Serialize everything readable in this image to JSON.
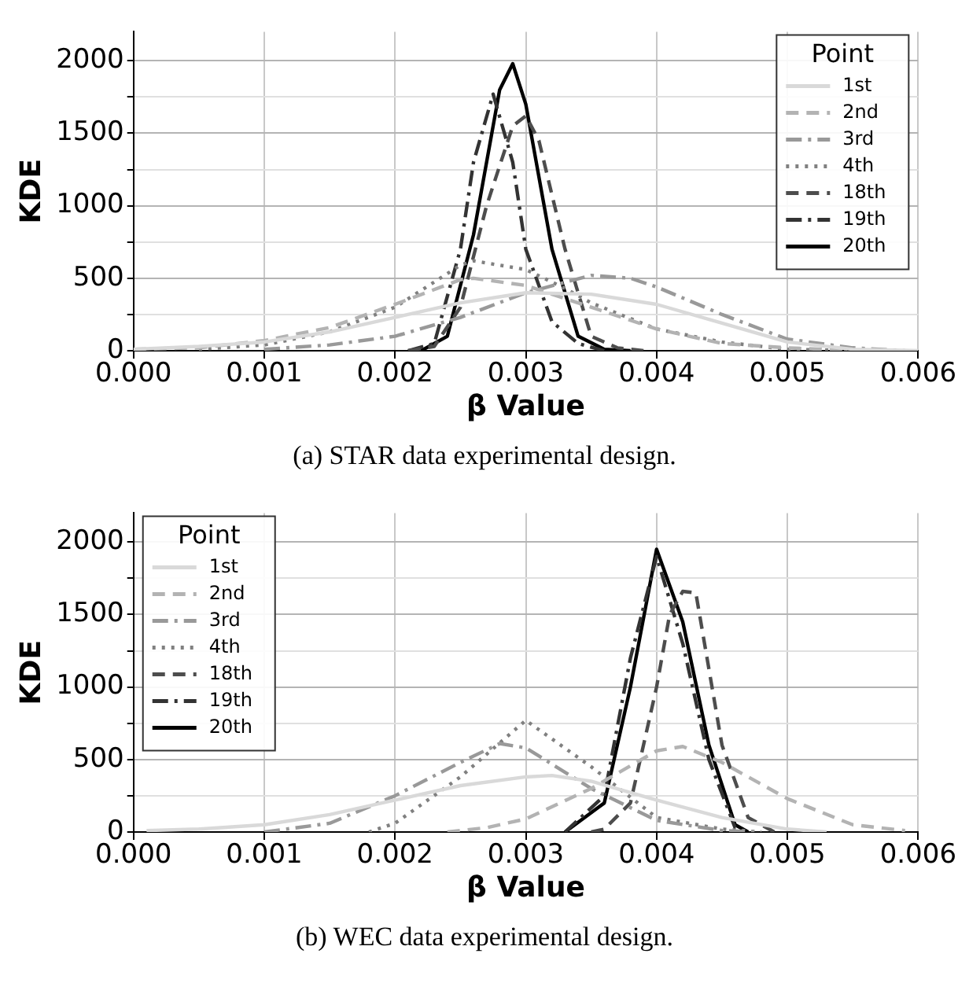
{
  "chart_data": [
    {
      "type": "line",
      "xlabel": "β Value",
      "ylabel": "KDE",
      "legend_title": "Point",
      "legend": "top right",
      "grid": true,
      "marker": "none",
      "annotations": [
        "(a) STAR data experimental design."
      ],
      "xlim": [
        0,
        0.006
      ],
      "ylim": [
        0,
        2200
      ],
      "xticks": [
        {
          "value": 0,
          "label": "0.000"
        },
        {
          "value": 0.001,
          "label": "0.001"
        },
        {
          "value": 0.002,
          "label": "0.002"
        },
        {
          "value": 0.003,
          "label": "0.003"
        },
        {
          "value": 0.004,
          "label": "0.004"
        },
        {
          "value": 0.005,
          "label": "0.005"
        },
        {
          "value": 0.006,
          "label": "0.006"
        }
      ],
      "yticks": [
        0,
        {
          "value": 250,
          "label": null
        },
        500,
        {
          "value": 750,
          "label": null
        },
        1000,
        {
          "value": 1250,
          "label": null
        },
        1500,
        {
          "value": 1750,
          "label": null
        },
        2000
      ],
      "series": [
        {
          "name": "1st",
          "color": "#d9d9d9",
          "line_style": "solid",
          "x": [
            0,
            0.0005,
            0.001,
            0.0015,
            0.002,
            0.0025,
            0.003,
            0.0035,
            0.004,
            0.0045,
            0.005,
            0.0055,
            0.006
          ],
          "values": [
            10,
            30,
            60,
            130,
            230,
            330,
            400,
            390,
            320,
            190,
            60,
            10,
            0
          ]
        },
        {
          "name": "2nd",
          "color": "#b3b3b3",
          "line_style": "dashed",
          "x": [
            0,
            0.0005,
            0.001,
            0.0015,
            0.002,
            0.0025,
            0.0026,
            0.003,
            0.0035,
            0.004,
            0.0045,
            0.005,
            0.0055
          ],
          "values": [
            10,
            20,
            70,
            160,
            320,
            490,
            500,
            450,
            300,
            150,
            50,
            20,
            0
          ]
        },
        {
          "name": "3rd",
          "color": "#999999",
          "line_style": "dashdot",
          "x": [
            0.001,
            0.0015,
            0.002,
            0.0025,
            0.003,
            0.0035,
            0.0038,
            0.004,
            0.0045,
            0.005,
            0.0055,
            0.0059
          ],
          "values": [
            10,
            40,
            100,
            230,
            400,
            520,
            500,
            440,
            250,
            80,
            20,
            0
          ]
        },
        {
          "name": "4th",
          "color": "#808080",
          "line_style": "dotted",
          "x": [
            0.0005,
            0.001,
            0.0015,
            0.002,
            0.0025,
            0.0026,
            0.003,
            0.0033,
            0.0035,
            0.004,
            0.0045,
            0.005,
            0.0055
          ],
          "values": [
            10,
            40,
            130,
            300,
            590,
            620,
            560,
            430,
            330,
            150,
            60,
            10,
            0
          ]
        },
        {
          "name": "18th",
          "color": "#4d4d4d",
          "line_style": "dashed",
          "x": [
            0.0021,
            0.0023,
            0.0025,
            0.0027,
            0.0029,
            0.003,
            0.0031,
            0.0033,
            0.0035,
            0.0037,
            0.0039
          ],
          "values": [
            0,
            30,
            300,
            1000,
            1550,
            1620,
            1450,
            700,
            100,
            20,
            0
          ]
        },
        {
          "name": "19th",
          "color": "#333333",
          "line_style": "dashdot",
          "x": [
            0.0021,
            0.0023,
            0.0025,
            0.0026,
            0.00275,
            0.0029,
            0.003,
            0.0032,
            0.0034,
            0.0036
          ],
          "values": [
            0,
            50,
            700,
            1300,
            1770,
            1300,
            700,
            200,
            50,
            0
          ]
        },
        {
          "name": "20th",
          "color": "#000000",
          "line_style": "solid",
          "x": [
            0.0022,
            0.0024,
            0.0026,
            0.0028,
            0.0029,
            0.003,
            0.0032,
            0.0034,
            0.0036,
            0.0038
          ],
          "values": [
            0,
            100,
            800,
            1800,
            1980,
            1700,
            700,
            100,
            10,
            0
          ]
        }
      ]
    },
    {
      "type": "line",
      "xlabel": "β Value",
      "ylabel": "KDE",
      "legend_title": "Point",
      "legend": "top left",
      "grid": true,
      "marker": "none",
      "annotations": [
        "(b) WEC data experimental design."
      ],
      "xlim": [
        0,
        0.006
      ],
      "ylim": [
        0,
        2200
      ],
      "xticks": [
        {
          "value": 0,
          "label": "0.000"
        },
        {
          "value": 0.001,
          "label": "0.001"
        },
        {
          "value": 0.002,
          "label": "0.002"
        },
        {
          "value": 0.003,
          "label": "0.003"
        },
        {
          "value": 0.004,
          "label": "0.004"
        },
        {
          "value": 0.005,
          "label": "0.005"
        },
        {
          "value": 0.006,
          "label": "0.006"
        }
      ],
      "yticks": [
        0,
        {
          "value": 250,
          "label": null
        },
        500,
        {
          "value": 750,
          "label": null
        },
        1000,
        {
          "value": 1250,
          "label": null
        },
        1500,
        {
          "value": 1750,
          "label": null
        },
        2000
      ],
      "series": [
        {
          "name": "1st",
          "color": "#d9d9d9",
          "line_style": "solid",
          "x": [
            0.0001,
            0.0005,
            0.001,
            0.0015,
            0.002,
            0.0025,
            0.003,
            0.0032,
            0.0035,
            0.004,
            0.0045,
            0.005,
            0.0053
          ],
          "values": [
            10,
            20,
            50,
            120,
            220,
            320,
            380,
            390,
            350,
            220,
            100,
            20,
            0
          ]
        },
        {
          "name": "2nd",
          "color": "#b3b3b3",
          "line_style": "dashed",
          "x": [
            0.0024,
            0.0027,
            0.003,
            0.0035,
            0.004,
            0.0042,
            0.0045,
            0.005,
            0.0055,
            0.0059
          ],
          "values": [
            0,
            30,
            90,
            300,
            560,
            590,
            480,
            230,
            50,
            10
          ]
        },
        {
          "name": "3rd",
          "color": "#999999",
          "line_style": "dashdot",
          "x": [
            0.001,
            0.0015,
            0.002,
            0.0025,
            0.0028,
            0.003,
            0.0035,
            0.004,
            0.0045,
            0.0048
          ],
          "values": [
            0,
            60,
            250,
            480,
            610,
            580,
            300,
            80,
            10,
            0
          ]
        },
        {
          "name": "4th",
          "color": "#808080",
          "line_style": "dotted",
          "x": [
            0.0018,
            0.002,
            0.0025,
            0.003,
            0.0035,
            0.004,
            0.0045,
            0.0048
          ],
          "values": [
            0,
            60,
            380,
            770,
            450,
            100,
            20,
            0
          ]
        },
        {
          "name": "18th",
          "color": "#4d4d4d",
          "line_style": "dashed",
          "x": [
            0.0035,
            0.0036,
            0.0038,
            0.004,
            0.0041,
            0.0042,
            0.0043,
            0.0045,
            0.0047,
            0.0049
          ],
          "values": [
            0,
            20,
            200,
            1000,
            1500,
            1660,
            1650,
            600,
            100,
            0
          ]
        },
        {
          "name": "19th",
          "color": "#333333",
          "line_style": "dashdot",
          "x": [
            0.0033,
            0.0036,
            0.0038,
            0.004,
            0.0042,
            0.0044,
            0.0046,
            0.0047
          ],
          "values": [
            0,
            250,
            1200,
            1900,
            1300,
            500,
            30,
            0
          ]
        },
        {
          "name": "20th",
          "color": "#000000",
          "line_style": "solid",
          "x": [
            0.0033,
            0.0036,
            0.0038,
            0.004,
            0.0042,
            0.0044,
            0.0046,
            0.0047
          ],
          "values": [
            0,
            200,
            1000,
            1950,
            1450,
            600,
            50,
            0
          ]
        }
      ]
    }
  ]
}
